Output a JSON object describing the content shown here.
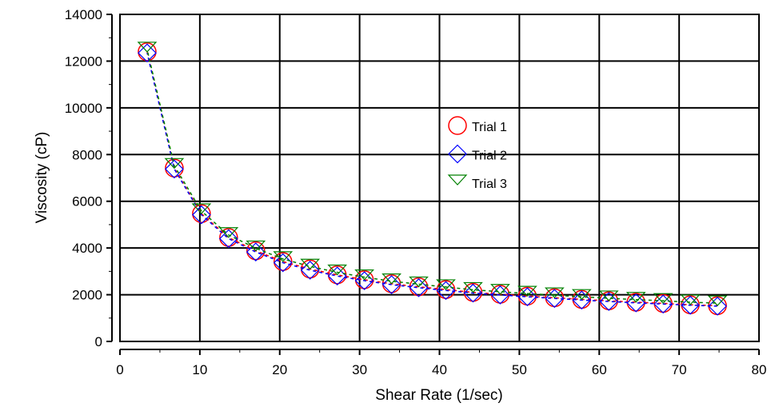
{
  "chart_data": {
    "type": "scatter",
    "title": "",
    "xlabel": "Shear Rate (1/sec)",
    "ylabel": "Viscosity (cP)",
    "xlim": [
      0,
      80
    ],
    "ylim": [
      0,
      14000
    ],
    "xticks": [
      0,
      10,
      20,
      30,
      40,
      50,
      60,
      70,
      80
    ],
    "yticks": [
      0,
      2000,
      4000,
      6000,
      8000,
      10000,
      12000,
      14000
    ],
    "grid": true,
    "legend_position": "center",
    "x": [
      3.4,
      6.8,
      10.2,
      13.6,
      17.0,
      20.4,
      23.8,
      27.2,
      30.6,
      34.0,
      37.4,
      40.8,
      44.2,
      47.6,
      51.0,
      54.4,
      57.8,
      61.2,
      64.6,
      68.0,
      71.4,
      74.8
    ],
    "series": [
      {
        "name": "Trial 1",
        "marker": "circle",
        "color": "#ff0000",
        "values": [
          12400,
          7420,
          5470,
          4450,
          3880,
          3420,
          3100,
          2850,
          2640,
          2470,
          2340,
          2220,
          2100,
          2020,
          1940,
          1870,
          1800,
          1740,
          1680,
          1630,
          1570,
          1530
        ]
      },
      {
        "name": "Trial 2",
        "marker": "diamond",
        "color": "#0000ff",
        "values": [
          12350,
          7380,
          5420,
          4400,
          3830,
          3370,
          3050,
          2800,
          2600,
          2430,
          2300,
          2180,
          2070,
          1990,
          1910,
          1840,
          1770,
          1710,
          1650,
          1600,
          1550,
          1510
        ]
      },
      {
        "name": "Trial 3",
        "marker": "triangle-down",
        "color": "#008000",
        "values": [
          12500,
          7520,
          5580,
          4560,
          3990,
          3530,
          3210,
          2960,
          2750,
          2580,
          2450,
          2330,
          2210,
          2130,
          2050,
          1980,
          1910,
          1850,
          1790,
          1740,
          1680,
          1640
        ]
      }
    ]
  }
}
